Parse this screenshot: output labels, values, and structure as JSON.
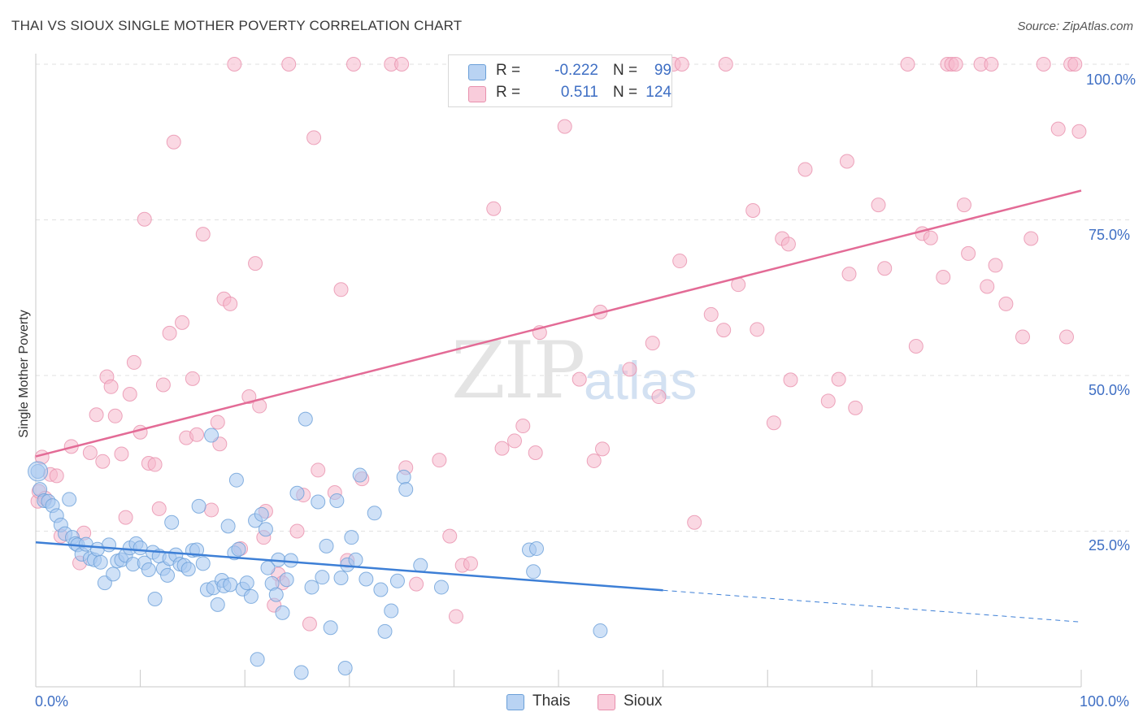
{
  "title": "THAI VS SIOUX SINGLE MOTHER POVERTY CORRELATION CHART",
  "source": "Source: ZipAtlas.com",
  "watermark": {
    "zip": "ZIP",
    "atlas": "atlas"
  },
  "legend": {
    "rows": [
      {
        "series": "Thais",
        "r_label": "R =",
        "r_value": "-0.222",
        "n_label": "N =",
        "n_value": "99",
        "color": "#a8c8f0"
      },
      {
        "series": "Sioux",
        "r_label": "R =",
        "r_value": "0.511",
        "n_label": "N =",
        "n_value": "124",
        "color": "#f5b8cc"
      }
    ]
  },
  "colors": {
    "thais_fill": "#a8c8f0",
    "thais_stroke": "#6a9fd8",
    "thais_line": "#3d7fd6",
    "sioux_fill": "#f5b8cc",
    "sioux_stroke": "#e890ad",
    "sioux_line": "#e36b96",
    "tick_text": "#3f6fc4"
  },
  "chart_data": {
    "type": "scatter",
    "title": "THAI VS SIOUX SINGLE MOTHER POVERTY CORRELATION CHART",
    "xlabel": "",
    "ylabel": "Single Mother Poverty",
    "xlim": [
      0,
      100
    ],
    "ylim": [
      0,
      105
    ],
    "x_tick_labels": [
      "0.0%",
      "100.0%"
    ],
    "y_tick_labels": [
      "25.0%",
      "50.0%",
      "75.0%",
      "100.0%"
    ],
    "y_ticks": [
      25,
      50,
      75,
      100
    ],
    "grid": true,
    "legend_position": "top-center",
    "series": [
      {
        "name": "Thais",
        "trend": {
          "x": [
            0,
            60
          ],
          "y": [
            23.2,
            15.5
          ],
          "dashed_extension": {
            "x": [
              60,
              100
            ],
            "y": [
              15.5,
              10.4
            ]
          }
        },
        "points": [
          [
            0.2,
            34.6
          ],
          [
            0.4,
            31.7
          ],
          [
            0.8,
            29.9
          ],
          [
            1.2,
            29.8
          ],
          [
            1.6,
            29.1
          ],
          [
            2.0,
            27.5
          ],
          [
            2.4,
            26.0
          ],
          [
            2.8,
            24.6
          ],
          [
            3.2,
            30.1
          ],
          [
            3.5,
            24.0
          ],
          [
            3.8,
            23.0
          ],
          [
            4.0,
            22.8
          ],
          [
            4.4,
            21.3
          ],
          [
            4.8,
            22.9
          ],
          [
            5.2,
            20.6
          ],
          [
            5.6,
            20.4
          ],
          [
            5.9,
            22.1
          ],
          [
            6.2,
            20.0
          ],
          [
            6.6,
            16.7
          ],
          [
            7.0,
            22.8
          ],
          [
            7.4,
            18.1
          ],
          [
            7.8,
            20.2
          ],
          [
            8.2,
            20.4
          ],
          [
            8.6,
            21.1
          ],
          [
            9.0,
            22.3
          ],
          [
            9.3,
            19.7
          ],
          [
            9.6,
            23.0
          ],
          [
            10.0,
            22.3
          ],
          [
            10.4,
            19.9
          ],
          [
            10.8,
            18.8
          ],
          [
            11.2,
            21.6
          ],
          [
            11.4,
            14.1
          ],
          [
            11.8,
            21.0
          ],
          [
            12.2,
            19.0
          ],
          [
            12.6,
            17.9
          ],
          [
            12.8,
            20.6
          ],
          [
            13.0,
            26.4
          ],
          [
            13.4,
            21.2
          ],
          [
            13.8,
            19.7
          ],
          [
            14.2,
            19.5
          ],
          [
            14.6,
            18.9
          ],
          [
            15.0,
            21.9
          ],
          [
            15.4,
            22.0
          ],
          [
            15.6,
            29.0
          ],
          [
            16.0,
            19.8
          ],
          [
            16.4,
            15.6
          ],
          [
            16.8,
            40.4
          ],
          [
            17.0,
            15.9
          ],
          [
            17.4,
            13.2
          ],
          [
            17.8,
            17.1
          ],
          [
            18.0,
            16.2
          ],
          [
            18.4,
            25.8
          ],
          [
            18.6,
            16.4
          ],
          [
            19.0,
            21.5
          ],
          [
            19.2,
            33.2
          ],
          [
            19.4,
            22.1
          ],
          [
            19.8,
            15.7
          ],
          [
            20.2,
            16.7
          ],
          [
            20.6,
            14.5
          ],
          [
            21.0,
            26.7
          ],
          [
            21.2,
            4.4
          ],
          [
            21.6,
            27.7
          ],
          [
            22.0,
            25.3
          ],
          [
            22.2,
            19.1
          ],
          [
            22.6,
            16.6
          ],
          [
            23.0,
            14.8
          ],
          [
            23.2,
            20.4
          ],
          [
            23.6,
            11.9
          ],
          [
            24.0,
            17.2
          ],
          [
            24.4,
            20.3
          ],
          [
            25.0,
            31.1
          ],
          [
            25.4,
            2.3
          ],
          [
            25.8,
            43.0
          ],
          [
            26.4,
            16.0
          ],
          [
            27.0,
            29.7
          ],
          [
            27.4,
            17.6
          ],
          [
            27.8,
            22.6
          ],
          [
            28.2,
            9.5
          ],
          [
            28.8,
            29.9
          ],
          [
            29.2,
            17.5
          ],
          [
            29.6,
            3.0
          ],
          [
            29.8,
            19.6
          ],
          [
            30.2,
            24.0
          ],
          [
            30.6,
            20.4
          ],
          [
            31.0,
            34.0
          ],
          [
            31.6,
            17.3
          ],
          [
            32.4,
            27.9
          ],
          [
            33.0,
            15.6
          ],
          [
            33.4,
            8.9
          ],
          [
            34.0,
            12.2
          ],
          [
            34.6,
            17.0
          ],
          [
            35.2,
            33.7
          ],
          [
            35.4,
            31.7
          ],
          [
            36.8,
            19.5
          ],
          [
            38.8,
            16.0
          ],
          [
            47.2,
            22.0
          ],
          [
            47.6,
            18.5
          ],
          [
            47.9,
            22.2
          ],
          [
            54.0,
            9.0
          ]
        ]
      },
      {
        "name": "Sioux",
        "trend": {
          "x": [
            0,
            100
          ],
          "y": [
            37.0,
            79.7
          ]
        },
        "points": [
          [
            0.2,
            29.8
          ],
          [
            0.3,
            31.4
          ],
          [
            0.6,
            36.9
          ],
          [
            0.9,
            30.3
          ],
          [
            1.4,
            34.1
          ],
          [
            2.0,
            33.9
          ],
          [
            2.4,
            24.2
          ],
          [
            3.4,
            38.6
          ],
          [
            4.2,
            19.9
          ],
          [
            4.6,
            24.7
          ],
          [
            5.2,
            37.6
          ],
          [
            5.8,
            43.7
          ],
          [
            6.4,
            36.2
          ],
          [
            6.8,
            49.8
          ],
          [
            7.2,
            48.2
          ],
          [
            7.6,
            43.5
          ],
          [
            8.2,
            37.4
          ],
          [
            8.6,
            27.2
          ],
          [
            9.0,
            47.0
          ],
          [
            9.4,
            52.1
          ],
          [
            10.0,
            40.9
          ],
          [
            10.4,
            75.1
          ],
          [
            10.8,
            35.9
          ],
          [
            11.4,
            35.7
          ],
          [
            11.8,
            28.6
          ],
          [
            12.2,
            48.5
          ],
          [
            12.8,
            56.8
          ],
          [
            13.2,
            87.5
          ],
          [
            14.0,
            58.5
          ],
          [
            14.4,
            40.0
          ],
          [
            15.0,
            49.5
          ],
          [
            15.4,
            40.5
          ],
          [
            16.0,
            72.7
          ],
          [
            16.8,
            28.4
          ],
          [
            17.4,
            42.5
          ],
          [
            17.6,
            39.0
          ],
          [
            18.0,
            62.3
          ],
          [
            18.6,
            61.5
          ],
          [
            19.0,
            100.0
          ],
          [
            19.6,
            22.2
          ],
          [
            20.4,
            46.6
          ],
          [
            21.0,
            68.0
          ],
          [
            21.4,
            45.1
          ],
          [
            21.8,
            24.0
          ],
          [
            22.0,
            28.2
          ],
          [
            22.8,
            13.1
          ],
          [
            23.2,
            18.1
          ],
          [
            23.6,
            16.7
          ],
          [
            24.2,
            100.0
          ],
          [
            25.0,
            25.0
          ],
          [
            25.6,
            30.8
          ],
          [
            26.2,
            10.1
          ],
          [
            26.6,
            88.2
          ],
          [
            27.0,
            34.8
          ],
          [
            28.6,
            31.2
          ],
          [
            29.2,
            63.8
          ],
          [
            29.8,
            20.3
          ],
          [
            30.4,
            100.0
          ],
          [
            31.2,
            33.4
          ],
          [
            34.0,
            100.0
          ],
          [
            35.0,
            100.0
          ],
          [
            35.4,
            35.2
          ],
          [
            36.4,
            16.5
          ],
          [
            38.6,
            36.4
          ],
          [
            39.6,
            24.2
          ],
          [
            40.2,
            11.3
          ],
          [
            40.8,
            19.5
          ],
          [
            41.6,
            19.8
          ],
          [
            43.8,
            76.8
          ],
          [
            44.6,
            38.3
          ],
          [
            45.8,
            39.5
          ],
          [
            46.6,
            41.9
          ],
          [
            47.8,
            37.6
          ],
          [
            48.2,
            56.9
          ],
          [
            50.6,
            90.0
          ],
          [
            52.0,
            49.4
          ],
          [
            53.4,
            36.3
          ],
          [
            54.0,
            60.2
          ],
          [
            54.2,
            38.2
          ],
          [
            56.8,
            51.0
          ],
          [
            59.0,
            55.2
          ],
          [
            59.6,
            46.6
          ],
          [
            61.0,
            100.0
          ],
          [
            61.6,
            68.4
          ],
          [
            61.8,
            100.0
          ],
          [
            63.0,
            26.4
          ],
          [
            64.6,
            59.8
          ],
          [
            65.8,
            57.3
          ],
          [
            66.0,
            100.0
          ],
          [
            67.2,
            64.6
          ],
          [
            68.6,
            76.5
          ],
          [
            69.0,
            57.4
          ],
          [
            70.6,
            42.4
          ],
          [
            71.4,
            72.0
          ],
          [
            72.0,
            71.1
          ],
          [
            72.2,
            49.3
          ],
          [
            73.6,
            83.1
          ],
          [
            75.8,
            45.9
          ],
          [
            76.8,
            49.4
          ],
          [
            77.6,
            84.4
          ],
          [
            77.8,
            66.3
          ],
          [
            78.4,
            44.8
          ],
          [
            80.6,
            77.4
          ],
          [
            81.2,
            67.2
          ],
          [
            83.4,
            100.0
          ],
          [
            84.2,
            54.7
          ],
          [
            84.8,
            72.8
          ],
          [
            85.6,
            72.1
          ],
          [
            86.8,
            65.8
          ],
          [
            87.2,
            100.0
          ],
          [
            87.6,
            100.0
          ],
          [
            88.0,
            100.0
          ],
          [
            88.8,
            77.4
          ],
          [
            89.2,
            69.6
          ],
          [
            90.4,
            100.0
          ],
          [
            91.0,
            64.3
          ],
          [
            91.4,
            100.0
          ],
          [
            91.8,
            67.7
          ],
          [
            92.8,
            61.5
          ],
          [
            94.4,
            56.2
          ],
          [
            95.2,
            72.0
          ],
          [
            96.4,
            100.0
          ],
          [
            97.8,
            89.6
          ],
          [
            98.6,
            56.2
          ],
          [
            99.0,
            100.0
          ],
          [
            99.4,
            100.0
          ],
          [
            99.8,
            89.2
          ]
        ]
      }
    ]
  }
}
